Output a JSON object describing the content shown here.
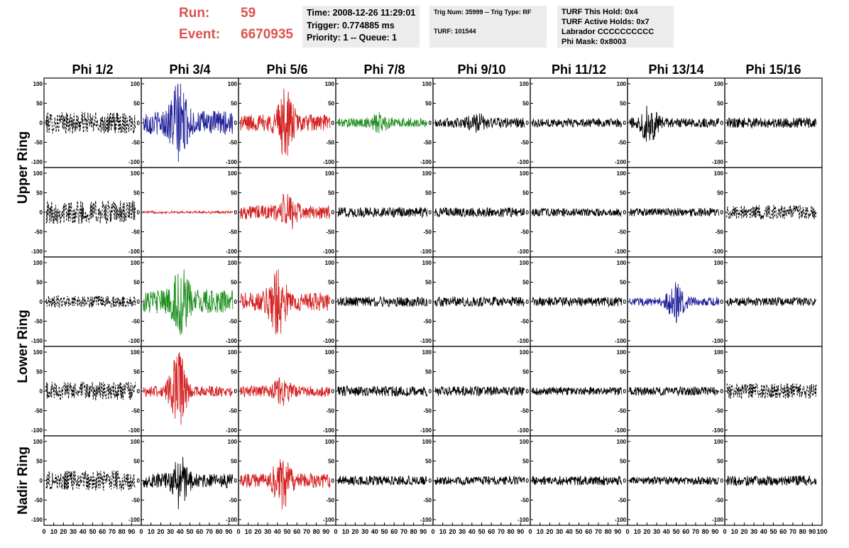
{
  "header": {
    "run_label": "Run:",
    "run_value": "59",
    "event_label": "Event:",
    "event_value": "6670935"
  },
  "info_time": {
    "time": "Time: 2008-12-26 11:29:01",
    "trigger": "Trigger: 0.774885 ms",
    "priority": "Priority: 1 -- Queue: 1"
  },
  "info_trig": {
    "trig": "Trig Num: 35999 -- Trig Type: RF",
    "turf": "TURF: 101544"
  },
  "info_turf": {
    "this_hold": "TURF This Hold: 0x4",
    "active_holds": "TURF Active Holds: 0x7",
    "labrador": "Labrador CCCCCCCCCC",
    "phi_mask": "Phi Mask: 0x8003"
  },
  "chart_data": {
    "type": "line",
    "columns": [
      "Phi 1/2",
      "Phi 3/4",
      "Phi 5/6",
      "Phi 7/8",
      "Phi 9/10",
      "Phi 11/12",
      "Phi 13/14",
      "Phi 15/16"
    ],
    "rows": [
      "Upper Ring",
      "Upper Ring",
      "Lower Ring",
      "Lower Ring",
      "Nadir Ring"
    ],
    "row_labels": [
      "Upper Ring",
      "Lower Ring",
      "Nadir Ring"
    ],
    "x_tick_labels": [
      "0",
      "10",
      "20",
      "30",
      "40",
      "50",
      "60",
      "70",
      "80",
      "90",
      "100"
    ],
    "y_tick_labels": [
      "100",
      "50",
      "0",
      "-50",
      "-100"
    ],
    "xlim": [
      0,
      100
    ],
    "ylim": [
      -100,
      100
    ],
    "colors": {
      "black": "#000000",
      "blue": "#1f1f9a",
      "red": "#d42020",
      "green": "#1f8f1f"
    },
    "traces": [
      [
        {
          "color": "black",
          "dashed": true,
          "amp": 28,
          "burst": 0,
          "center": 45
        },
        {
          "color": "blue",
          "dashed": false,
          "amp": 30,
          "burst": 85,
          "center": 38
        },
        {
          "color": "red",
          "dashed": false,
          "amp": 22,
          "burst": 70,
          "center": 48
        },
        {
          "color": "green",
          "dashed": false,
          "amp": 12,
          "burst": 18,
          "center": 45
        },
        {
          "color": "black",
          "dashed": false,
          "amp": 13,
          "burst": 15,
          "center": 45
        },
        {
          "color": "black",
          "dashed": false,
          "amp": 11,
          "burst": 0,
          "center": 45
        },
        {
          "color": "black",
          "dashed": false,
          "amp": 12,
          "burst": 45,
          "center": 22
        },
        {
          "color": "black",
          "dashed": false,
          "amp": 13,
          "burst": 0,
          "center": 45
        }
      ],
      [
        {
          "color": "black",
          "dashed": true,
          "amp": 30,
          "burst": 0,
          "center": 45
        },
        {
          "color": "red",
          "dashed": false,
          "amp": 3,
          "burst": 0,
          "center": 45
        },
        {
          "color": "red",
          "dashed": false,
          "amp": 18,
          "burst": 40,
          "center": 50
        },
        {
          "color": "black",
          "dashed": false,
          "amp": 13,
          "burst": 0,
          "center": 45
        },
        {
          "color": "black",
          "dashed": false,
          "amp": 12,
          "burst": 0,
          "center": 45
        },
        {
          "color": "black",
          "dashed": false,
          "amp": 10,
          "burst": 0,
          "center": 45
        },
        {
          "color": "black",
          "dashed": false,
          "amp": 11,
          "burst": 0,
          "center": 45
        },
        {
          "color": "black",
          "dashed": true,
          "amp": 18,
          "burst": 0,
          "center": 45
        }
      ],
      [
        {
          "color": "black",
          "dashed": true,
          "amp": 15,
          "burst": 0,
          "center": 45
        },
        {
          "color": "green",
          "dashed": false,
          "amp": 30,
          "burst": 70,
          "center": 40
        },
        {
          "color": "red",
          "dashed": false,
          "amp": 24,
          "burst": 70,
          "center": 40
        },
        {
          "color": "black",
          "dashed": false,
          "amp": 13,
          "burst": 0,
          "center": 45
        },
        {
          "color": "black",
          "dashed": false,
          "amp": 13,
          "burst": 0,
          "center": 45
        },
        {
          "color": "black",
          "dashed": false,
          "amp": 12,
          "burst": 0,
          "center": 45
        },
        {
          "color": "blue",
          "dashed": false,
          "amp": 11,
          "burst": 45,
          "center": 50
        },
        {
          "color": "black",
          "dashed": false,
          "amp": 11,
          "burst": 0,
          "center": 45
        }
      ],
      [
        {
          "color": "black",
          "dashed": true,
          "amp": 24,
          "burst": 0,
          "center": 45
        },
        {
          "color": "red",
          "dashed": false,
          "amp": 14,
          "burst": 95,
          "center": 38
        },
        {
          "color": "red",
          "dashed": false,
          "amp": 14,
          "burst": 25,
          "center": 45
        },
        {
          "color": "black",
          "dashed": false,
          "amp": 13,
          "burst": 0,
          "center": 45
        },
        {
          "color": "black",
          "dashed": false,
          "amp": 12,
          "burst": 0,
          "center": 45
        },
        {
          "color": "black",
          "dashed": false,
          "amp": 10,
          "burst": 0,
          "center": 45
        },
        {
          "color": "black",
          "dashed": false,
          "amp": 11,
          "burst": 0,
          "center": 45
        },
        {
          "color": "black",
          "dashed": true,
          "amp": 20,
          "burst": 0,
          "center": 45
        }
      ],
      [
        {
          "color": "black",
          "dashed": true,
          "amp": 26,
          "burst": 0,
          "center": 45
        },
        {
          "color": "black",
          "dashed": false,
          "amp": 18,
          "burst": 60,
          "center": 40
        },
        {
          "color": "red",
          "dashed": false,
          "amp": 18,
          "burst": 60,
          "center": 45
        },
        {
          "color": "black",
          "dashed": false,
          "amp": 12,
          "burst": 0,
          "center": 45
        },
        {
          "color": "black",
          "dashed": false,
          "amp": 11,
          "burst": 0,
          "center": 45
        },
        {
          "color": "black",
          "dashed": false,
          "amp": 12,
          "burst": 0,
          "center": 45
        },
        {
          "color": "black",
          "dashed": false,
          "amp": 10,
          "burst": 0,
          "center": 45
        },
        {
          "color": "black",
          "dashed": false,
          "amp": 13,
          "burst": 0,
          "center": 45
        }
      ]
    ]
  }
}
